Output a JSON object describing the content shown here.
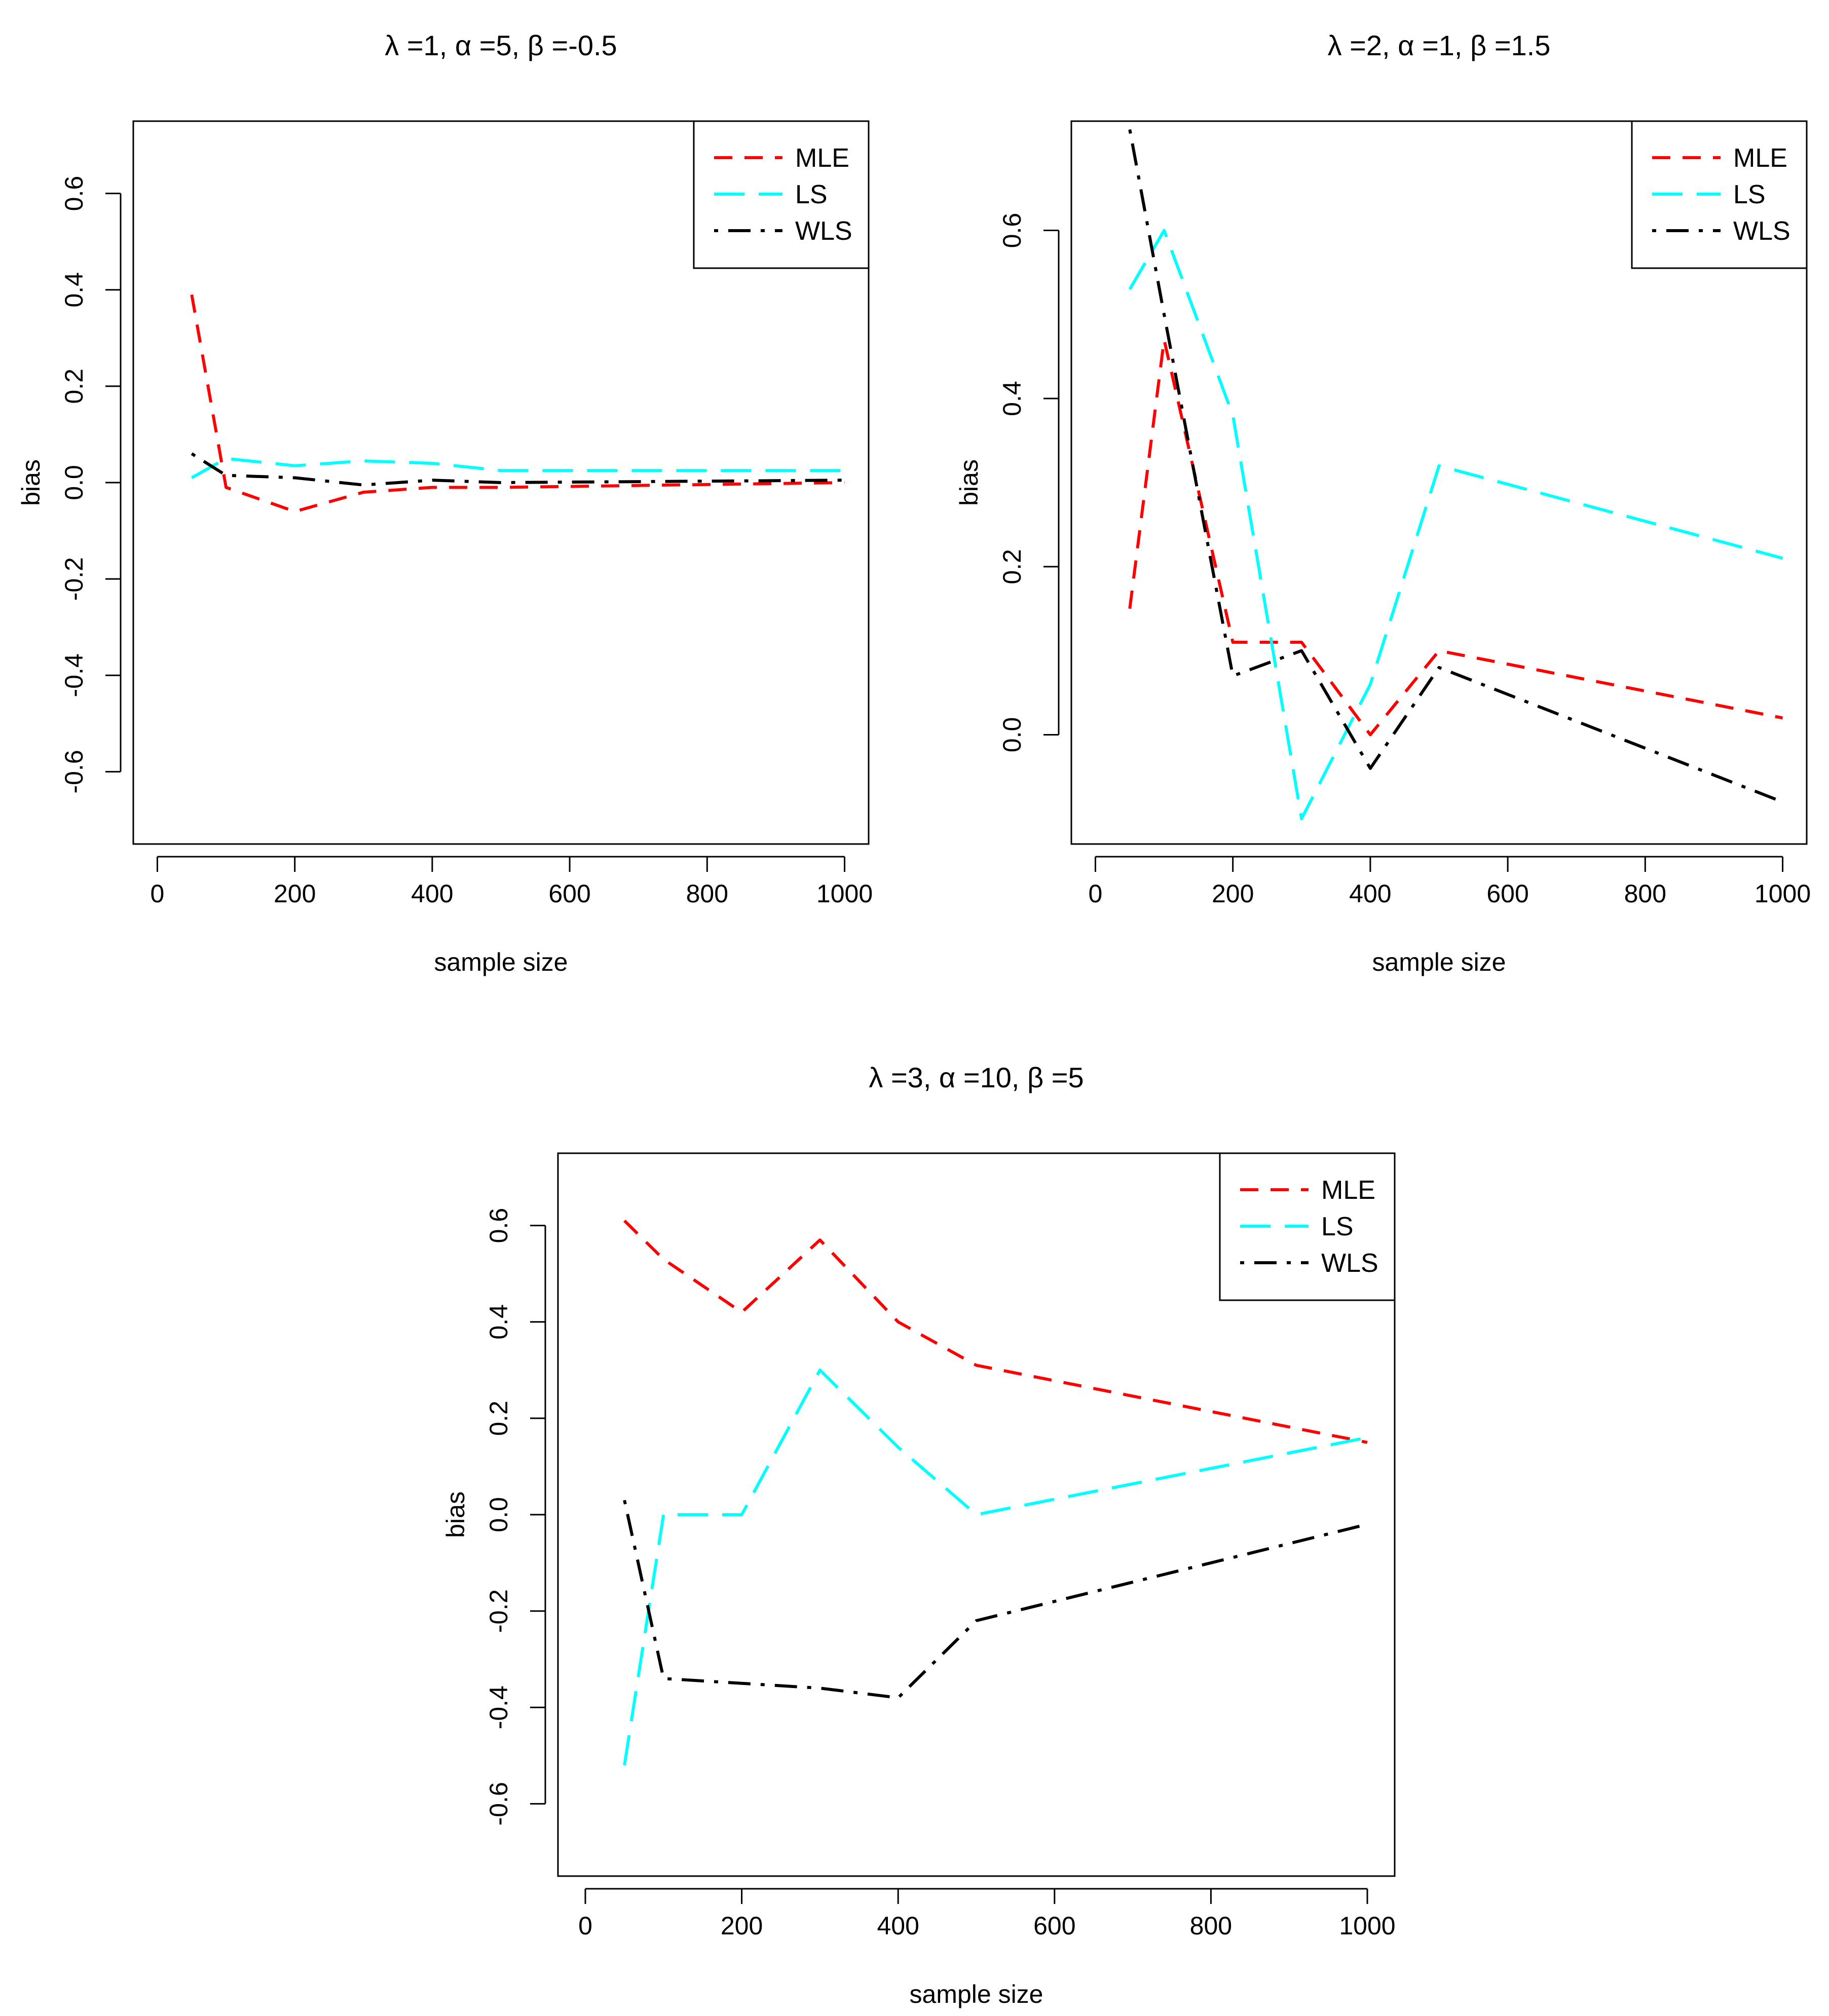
{
  "chart_data": [
    {
      "type": "line",
      "title": "λ =1, α =5, β =-0.5",
      "xlabel": "sample size",
      "ylabel": "bias",
      "xlim": [
        -35,
        1035
      ],
      "ylim": [
        -0.75,
        0.75
      ],
      "xticks": [
        0,
        200,
        400,
        600,
        800,
        1000
      ],
      "xtick_labels": [
        "0",
        "200",
        "400",
        "600",
        "800",
        "1000"
      ],
      "yticks": [
        -0.6,
        -0.4,
        -0.2,
        0.0,
        0.2,
        0.4,
        0.6
      ],
      "ytick_labels": [
        "-0.6",
        "-0.4",
        "-0.2",
        "0.0",
        "0.2",
        "0.4",
        "0.6"
      ],
      "legend": "top-right",
      "x": [
        50,
        100,
        200,
        300,
        400,
        500,
        1000
      ],
      "series": [
        {
          "name": "MLE",
          "color": "#ff0000",
          "dash": "short",
          "values": [
            0.39,
            -0.01,
            -0.06,
            -0.02,
            -0.01,
            -0.01,
            0.0
          ]
        },
        {
          "name": "LS",
          "color": "#00ffff",
          "dash": "long",
          "values": [
            0.01,
            0.05,
            0.035,
            0.045,
            0.04,
            0.025,
            0.025
          ]
        },
        {
          "name": "WLS",
          "color": "#000000",
          "dash": "dotdash",
          "values": [
            0.06,
            0.015,
            0.01,
            -0.005,
            0.005,
            0.0,
            0.005
          ]
        }
      ]
    },
    {
      "type": "line",
      "title": "λ =2, α =1, β =1.5",
      "xlabel": "sample size",
      "ylabel": "bias",
      "xlim": [
        -35,
        1035
      ],
      "ylim": [
        -0.13,
        0.73
      ],
      "xticks": [
        0,
        200,
        400,
        600,
        800,
        1000
      ],
      "xtick_labels": [
        "0",
        "200",
        "400",
        "600",
        "800",
        "1000"
      ],
      "yticks": [
        0.0,
        0.2,
        0.4,
        0.6
      ],
      "ytick_labels": [
        "0.0",
        "0.2",
        "0.4",
        "0.6"
      ],
      "legend": "top-right",
      "x": [
        50,
        100,
        200,
        300,
        400,
        500,
        1000
      ],
      "series": [
        {
          "name": "MLE",
          "color": "#ff0000",
          "dash": "short",
          "values": [
            0.15,
            0.47,
            0.11,
            0.11,
            0.0,
            0.1,
            0.02
          ]
        },
        {
          "name": "LS",
          "color": "#00ffff",
          "dash": "long",
          "values": [
            0.53,
            0.6,
            0.38,
            -0.1,
            0.06,
            0.32,
            0.21
          ]
        },
        {
          "name": "WLS",
          "color": "#000000",
          "dash": "dotdash",
          "values": [
            0.72,
            0.5,
            0.07,
            0.1,
            -0.04,
            0.08,
            -0.08
          ]
        }
      ]
    },
    {
      "type": "line",
      "title": "λ =3, α =10, β =5",
      "xlabel": "sample size",
      "ylabel": "bias",
      "xlim": [
        -35,
        1035
      ],
      "ylim": [
        -0.75,
        0.75
      ],
      "xticks": [
        0,
        200,
        400,
        600,
        800,
        1000
      ],
      "xtick_labels": [
        "0",
        "200",
        "400",
        "600",
        "800",
        "1000"
      ],
      "yticks": [
        -0.6,
        -0.4,
        -0.2,
        0.0,
        0.2,
        0.4,
        0.6
      ],
      "ytick_labels": [
        "-0.6",
        "-0.4",
        "-0.2",
        "0.0",
        "0.2",
        "0.4",
        "0.6"
      ],
      "legend": "top-right",
      "x": [
        50,
        100,
        200,
        300,
        400,
        500,
        1000
      ],
      "series": [
        {
          "name": "MLE",
          "color": "#ff0000",
          "dash": "short",
          "values": [
            0.61,
            0.53,
            0.42,
            0.57,
            0.4,
            0.31,
            0.15
          ]
        },
        {
          "name": "LS",
          "color": "#00ffff",
          "dash": "long",
          "values": [
            -0.52,
            0.0,
            0.0,
            0.3,
            0.14,
            0.0,
            0.16
          ]
        },
        {
          "name": "WLS",
          "color": "#000000",
          "dash": "dotdash",
          "values": [
            0.03,
            -0.34,
            -0.35,
            -0.36,
            -0.38,
            -0.22,
            -0.02
          ]
        }
      ]
    }
  ]
}
